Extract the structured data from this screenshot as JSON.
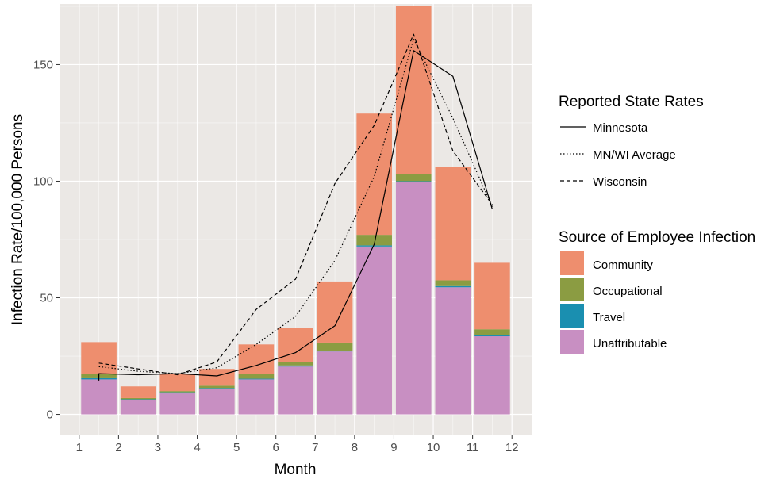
{
  "chart_data": {
    "type": "bar",
    "subtype": "stacked bar with line overlays",
    "xlabel": "Month",
    "ylabel": "Infection Rate/100,000 Persons",
    "x_ticks": [
      "1",
      "2",
      "3",
      "4",
      "5",
      "6",
      "7",
      "8",
      "9",
      "10",
      "11",
      "12"
    ],
    "y_ticks": [
      "0",
      "50",
      "100",
      "150"
    ],
    "xlim": [
      0.5,
      12.5
    ],
    "ylim": [
      -9,
      176
    ],
    "grid": true,
    "bar_x": [
      1.5,
      2.5,
      3.5,
      4.5,
      5.5,
      6.5,
      7.5,
      8.5,
      9.5,
      10.5,
      11.5
    ],
    "bar_series": [
      {
        "name": "Unattributable",
        "color": "#c88fc2",
        "values": [
          15,
          6,
          9,
          11,
          15,
          20.5,
          27,
          72,
          99.5,
          54.5,
          33.5
        ]
      },
      {
        "name": "Travel",
        "color": "#1a8fb0",
        "values": [
          0.5,
          0.5,
          0.5,
          0.3,
          0.3,
          0.5,
          0.3,
          0.5,
          0.5,
          0.5,
          0.5
        ]
      },
      {
        "name": "Occupational",
        "color": "#8b9c42",
        "values": [
          2,
          0.5,
          0.5,
          1,
          2,
          1.5,
          3.5,
          4.5,
          3,
          2.5,
          2.5
        ]
      },
      {
        "name": "Community",
        "color": "#ee8e6e",
        "values": [
          13.5,
          5,
          7.5,
          7.2,
          12.7,
          14.5,
          26.2,
          52,
          72,
          48.5,
          28.5
        ]
      }
    ],
    "line_series": [
      {
        "name": "Minnesota",
        "dash": "solid",
        "x": [
          1.5,
          1.5,
          2.5,
          3.5,
          4.5,
          5.5,
          6.5,
          7.5,
          8.5,
          9.5,
          10.5,
          11.5
        ],
        "values": [
          14.5,
          17.5,
          17,
          17.5,
          16.5,
          21,
          26.5,
          38,
          73,
          156,
          145,
          88
        ]
      },
      {
        "name": "MN/WI Average",
        "dash": "dotted",
        "x": [
          1.5,
          2.5,
          3.5,
          4.5,
          5.5,
          6.5,
          7.5,
          8.5,
          9.5,
          10.5,
          11.5
        ],
        "values": [
          20.5,
          18.5,
          17.5,
          20,
          30,
          42,
          66,
          102,
          161,
          127,
          89
        ]
      },
      {
        "name": "Wisconsin",
        "dash": "dashed",
        "x": [
          1.5,
          2.5,
          3.5,
          4.5,
          5.5,
          6.5,
          7.5,
          8.5,
          9.5,
          10.5,
          11.5
        ],
        "values": [
          22,
          19.5,
          17,
          22.5,
          45,
          58,
          99,
          124,
          163,
          113,
          90
        ]
      }
    ],
    "legends": [
      {
        "title": "Reported State Rates",
        "entries": [
          "Minnesota",
          "MN/WI Average",
          "Wisconsin"
        ]
      },
      {
        "title": "Source of Employee Infection",
        "entries": [
          "Community",
          "Occupational",
          "Travel",
          "Unattributable"
        ]
      }
    ],
    "legend_placement": "right",
    "colors": {
      "panel_background": "#ebe8e5",
      "grid": "#ffffff",
      "community": "#ee8e6e",
      "occupational": "#8b9c42",
      "travel": "#1a8fb0",
      "unattributable": "#c88fc2"
    }
  }
}
